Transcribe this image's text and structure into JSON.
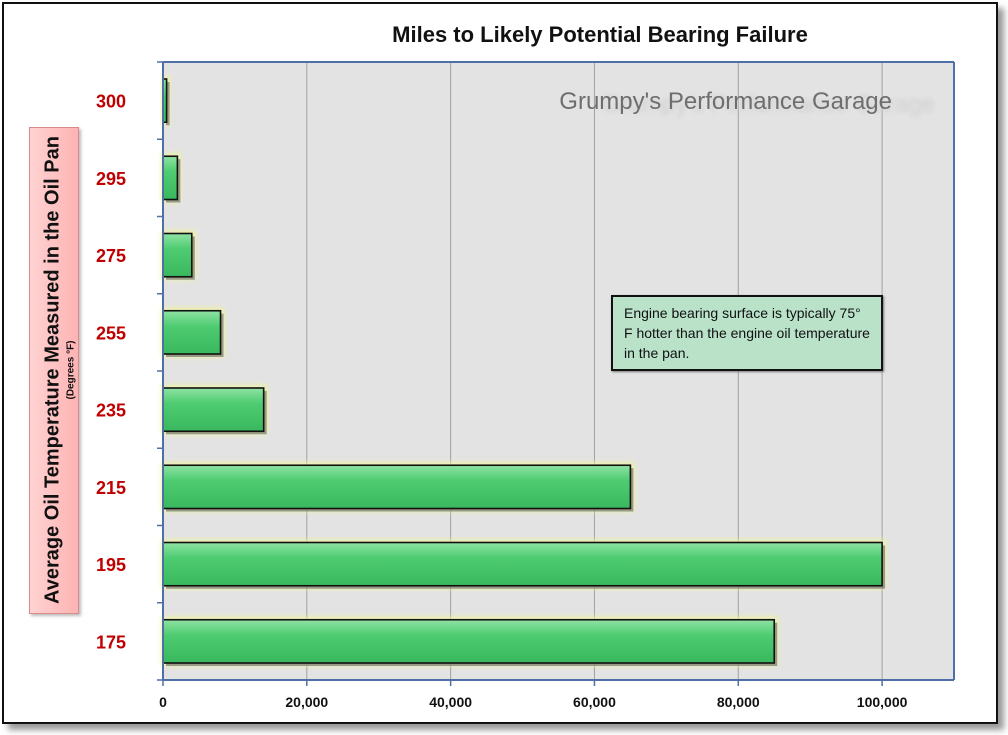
{
  "chart_data": {
    "type": "bar",
    "orientation": "horizontal",
    "title": "Miles to Likely Potential Bearing Failure",
    "xlabel": "",
    "ylabel": "Average Oil Temperature Measured in the Oil Pan",
    "ylabel_sub": "(Degrees  °F)",
    "categories": [
      "300",
      "295",
      "275",
      "255",
      "235",
      "215",
      "195",
      "175"
    ],
    "values": [
      500,
      2000,
      4000,
      8000,
      14000,
      65000,
      100000,
      85000
    ],
    "xlim": [
      0,
      110000
    ],
    "xticks": [
      0,
      20000,
      40000,
      60000,
      80000,
      100000
    ],
    "xtick_labels": [
      "0",
      "20,000",
      "40,000",
      "60,000",
      "80,000",
      "100,000"
    ],
    "grid": true,
    "watermark": "Grumpy's Performance Garage",
    "annotation": "Engine bearing surface is typically 75° F hotter than the engine oil temperature in the pan.",
    "colors": {
      "bar": "#4fcc72",
      "plot_bg": "#e3e3e3",
      "category_label": "#c00000",
      "axis": "#4f6fa8"
    }
  }
}
